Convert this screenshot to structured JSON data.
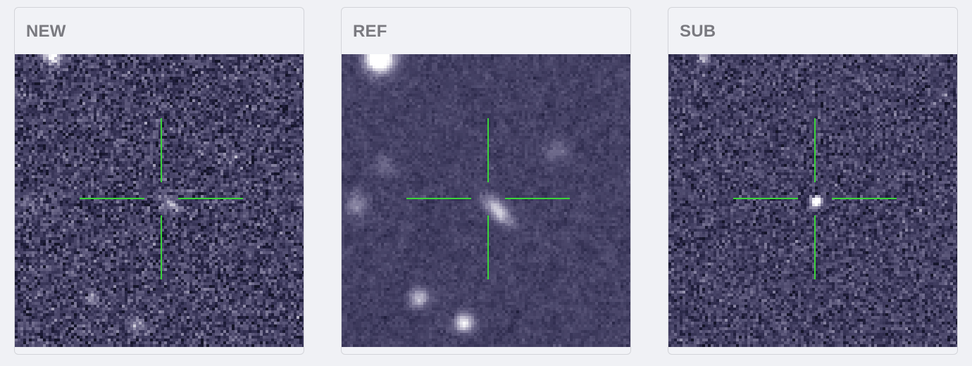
{
  "panels": [
    {
      "label": "NEW",
      "noise": 1.0,
      "blur": 0,
      "sources": "new"
    },
    {
      "label": "REF",
      "noise": 0.45,
      "blur": 1,
      "sources": "ref"
    },
    {
      "label": "SUB",
      "noise": 0.85,
      "blur": 0,
      "sources": "sub"
    }
  ],
  "colors": {
    "background_sky": "#2a2a3d",
    "crosshair": "#3ad43a",
    "header_text": "#7a7a80"
  },
  "icons": {
    "crosshair": "crosshair-reticle-icon"
  }
}
